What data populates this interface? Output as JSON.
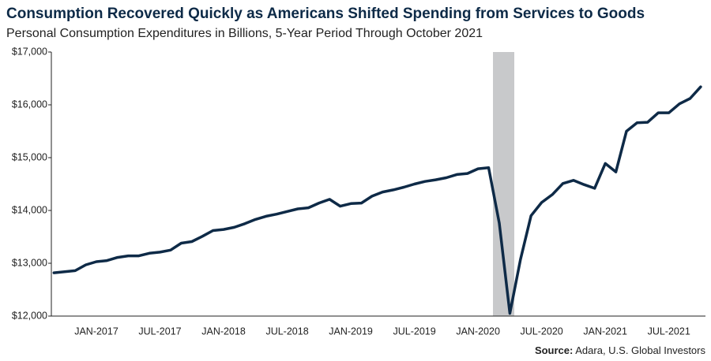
{
  "chart_data": {
    "type": "line",
    "title": "Consumption Recovered Quickly as Americans Shifted Spending from Services to Goods",
    "subtitle": "Personal Consumption Expenditures in Billions, 5-Year Period Through October 2021",
    "source_label": "Source:",
    "source_text": "Adara, U.S. Global Investors",
    "categories": [
      null,
      null,
      null,
      null,
      "JAN-2017",
      null,
      null,
      null,
      null,
      null,
      "JUL-2017",
      null,
      null,
      null,
      null,
      null,
      "JAN-2018",
      null,
      null,
      null,
      null,
      null,
      "JUL-2018",
      null,
      null,
      null,
      null,
      null,
      "JAN-2019",
      null,
      null,
      null,
      null,
      null,
      "JUL-2019",
      null,
      null,
      null,
      null,
      null,
      "JAN-2020",
      null,
      null,
      null,
      null,
      null,
      "JUL-2020",
      null,
      null,
      null,
      null,
      null,
      "JAN-2021",
      null,
      null,
      null,
      null,
      null,
      "JUL-2021",
      null,
      null,
      null
    ],
    "series": [
      {
        "name": "Personal Consumption Expenditures",
        "color": "#0e2a47",
        "values": [
          12820,
          12840,
          12860,
          12970,
          13030,
          13050,
          13110,
          13140,
          13140,
          13190,
          13210,
          13250,
          13380,
          13410,
          13510,
          13620,
          13640,
          13680,
          13750,
          13830,
          13890,
          13930,
          13980,
          14030,
          14050,
          14140,
          14210,
          14080,
          14130,
          14140,
          14270,
          14350,
          14390,
          14440,
          14500,
          14550,
          14580,
          14620,
          14680,
          14700,
          14790,
          14810,
          13760,
          12050,
          13070,
          13900,
          14150,
          14300,
          14510,
          14570,
          14490,
          14420,
          14890,
          14730,
          15500,
          15660,
          15670,
          15850,
          15850,
          16020,
          16120,
          16340
        ]
      }
    ],
    "ylim": [
      12000,
      17000
    ],
    "yticks": [
      {
        "value": 12000,
        "label": "$12,000"
      },
      {
        "value": 13000,
        "label": "$13,000"
      },
      {
        "value": 14000,
        "label": "$14,000"
      },
      {
        "value": 15000,
        "label": "$15,000"
      },
      {
        "value": 16000,
        "label": "$16,000"
      },
      {
        "value": 17000,
        "label": "$17,000"
      }
    ],
    "grid": false
  }
}
